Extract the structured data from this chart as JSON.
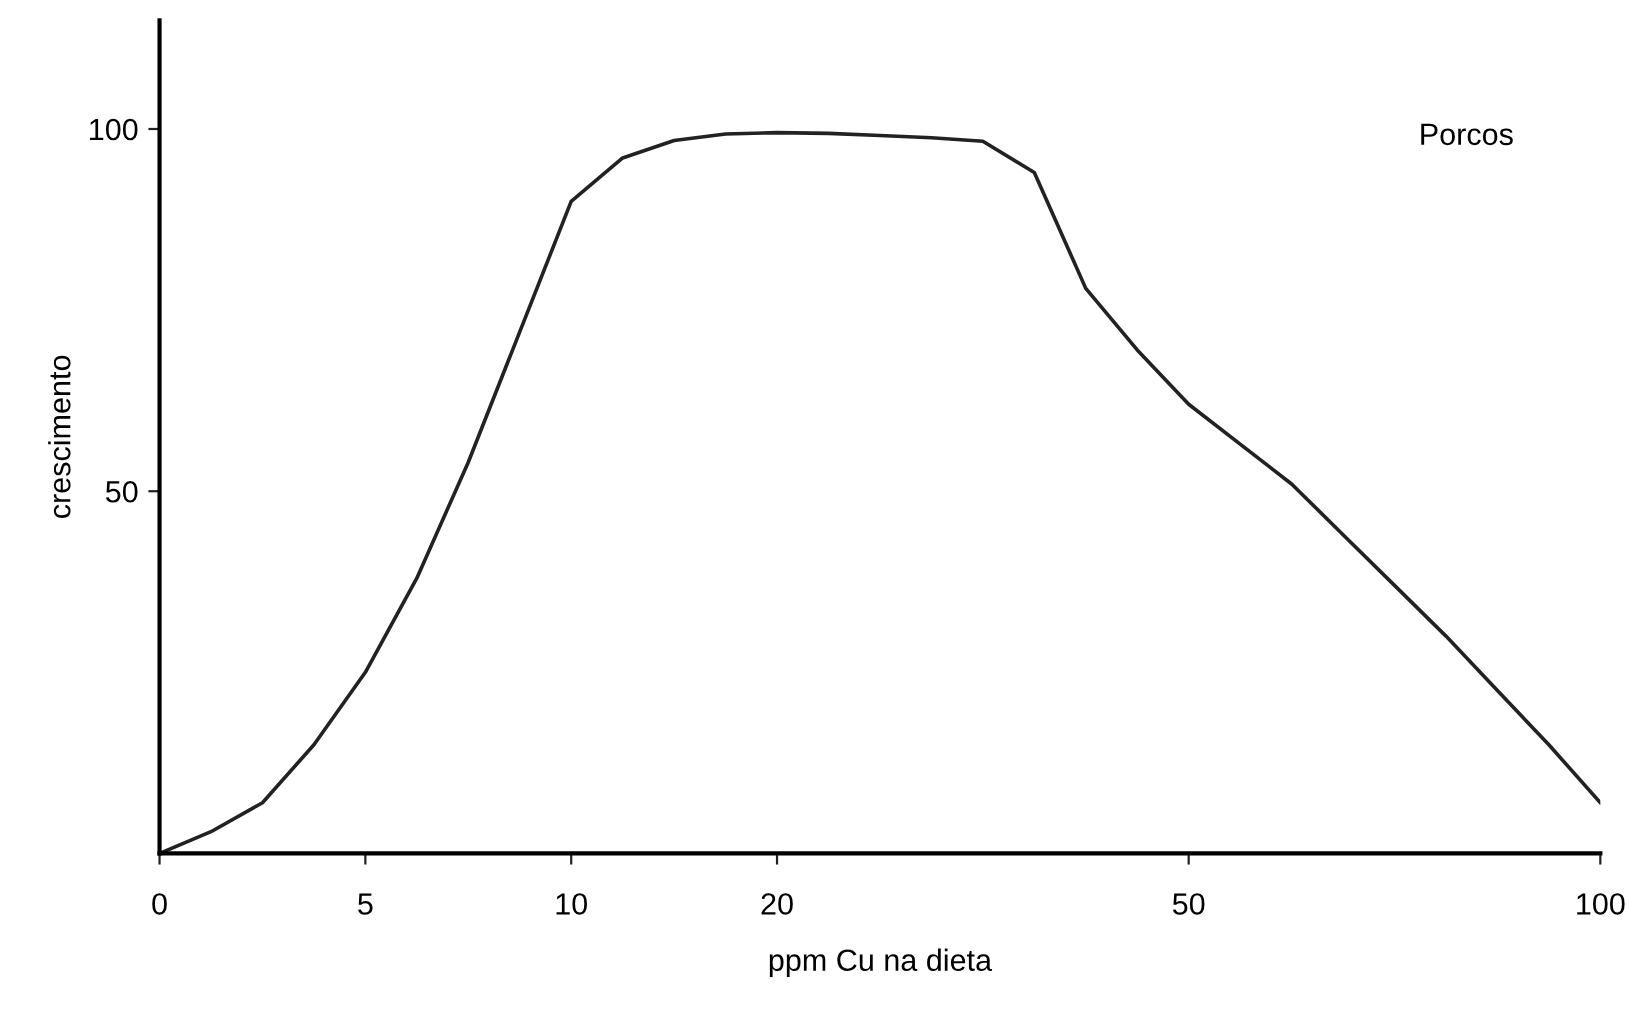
{
  "chart_data": {
    "type": "line",
    "xlabel": "ppm Cu na dieta",
    "ylabel": "crescimento",
    "annotations": [
      "Porcos"
    ],
    "categories": [
      "0",
      null,
      null,
      null,
      "5",
      null,
      null,
      null,
      "10",
      null,
      null,
      null,
      "20",
      null,
      null,
      null,
      null,
      null,
      null,
      null,
      "50",
      null,
      null,
      null,
      null,
      null,
      null,
      null,
      "100"
    ],
    "series": [
      {
        "color": "#222222",
        "values": [
          0,
          3,
          7,
          15,
          25,
          38,
          54,
          72,
          90,
          96,
          98.4,
          99.3,
          99.5,
          99.4,
          99.1,
          98.8,
          98.3,
          94,
          78,
          69.5,
          62,
          56.5,
          51,
          44,
          37,
          30,
          22.5,
          15,
          7
        ]
      }
    ],
    "ylim": [
      0,
      115
    ],
    "yticks": [
      50,
      100
    ],
    "grid": false,
    "legend": false,
    "marker": "none",
    "line_style": "solid"
  }
}
